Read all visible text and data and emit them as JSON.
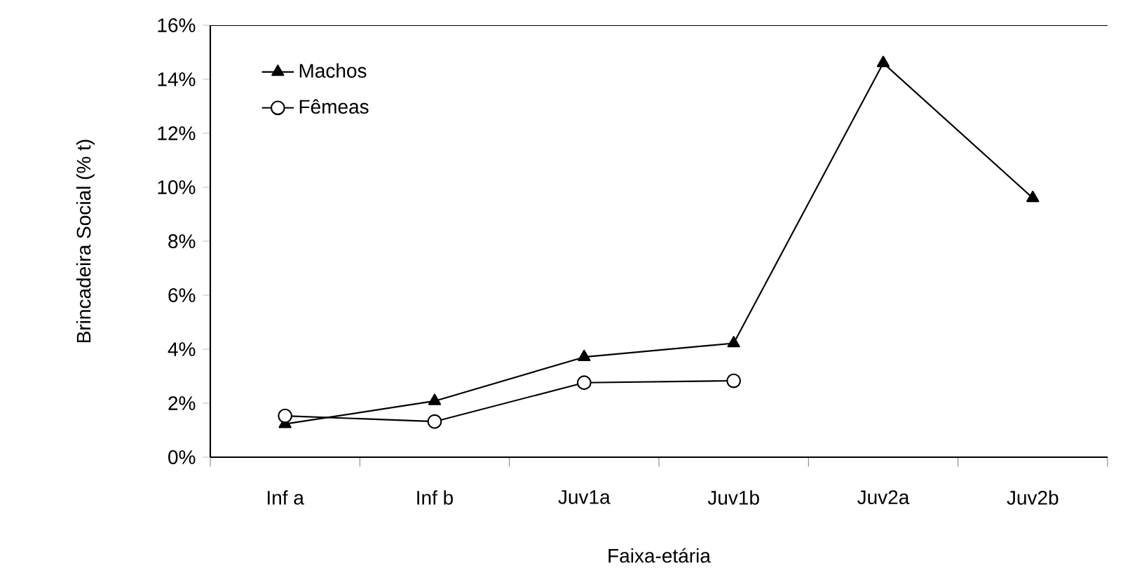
{
  "chart_data": {
    "type": "line",
    "xlabel": "Faixa-etária",
    "ylabel": "Brincadeira Social (% t)",
    "categories": [
      "Inf a",
      "Inf b",
      "Juv1a",
      "Juv1b",
      "Juv2a",
      "Juv2b"
    ],
    "series": [
      {
        "name": "Machos",
        "color": "#000000",
        "marker": "triangle",
        "values": [
          1.23,
          2.08,
          3.71,
          4.22,
          14.6,
          9.6
        ]
      },
      {
        "name": "Fêmeas",
        "color": "#000000",
        "marker": "circle",
        "values": [
          1.53,
          1.32,
          2.76,
          2.83,
          null,
          null
        ]
      }
    ],
    "ylim": [
      0,
      16
    ],
    "yticks": [
      {
        "value": 0,
        "label": "0%"
      },
      {
        "value": 2,
        "label": "2%"
      },
      {
        "value": 4,
        "label": "4%"
      },
      {
        "value": 6,
        "label": "6%"
      },
      {
        "value": 8,
        "label": "8%"
      },
      {
        "value": 10,
        "label": "10%"
      },
      {
        "value": 12,
        "label": "12%"
      },
      {
        "value": 14,
        "label": "14%"
      },
      {
        "value": 16,
        "label": "16%"
      }
    ],
    "legend": "top left",
    "grid": false,
    "line_style": "solid"
  }
}
